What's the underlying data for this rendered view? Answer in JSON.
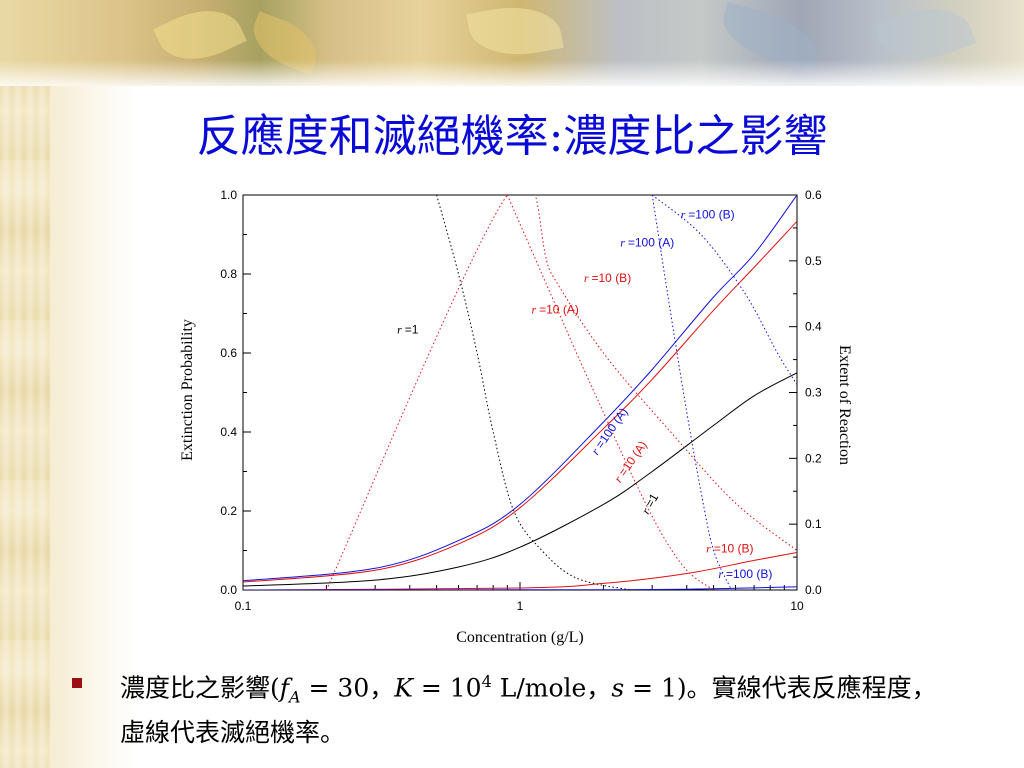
{
  "title": "反應度和滅絕機率:濃度比之影響",
  "bullet": {
    "prefix": "濃度比之影響(",
    "f_symbol": "f",
    "f_sub": "A",
    "f_eq": " = 30，",
    "K_symbol": "K",
    "K_eq": " = 10",
    "K_exp": "4",
    "K_unit": " L/mole，",
    "s_symbol": "s",
    "s_eq": " = 1)。實線代表反應程度，虛線代表滅絕機率。"
  },
  "chart_data": {
    "type": "line",
    "xscale": "log",
    "xlim": [
      0.1,
      10
    ],
    "ylim_left": [
      0,
      1.0
    ],
    "ylim_right": [
      0,
      0.6
    ],
    "xlabel": "Concentration (g/L)",
    "ylabel_left": "Extinction Probability",
    "ylabel_right": "Extent of Reaction",
    "x_ticks": [
      "0.1",
      "1",
      "10"
    ],
    "y_ticks_left": [
      "0.0",
      "0.2",
      "0.4",
      "0.6",
      "0.8",
      "1.0"
    ],
    "y_ticks_right": [
      "0.0",
      "0.1",
      "0.2",
      "0.3",
      "0.4",
      "0.5",
      "0.6"
    ],
    "colors": {
      "black": "#000000",
      "red": "#e01010",
      "blue": "#1010e0"
    },
    "series": [
      {
        "name": "r =1",
        "style": "solid",
        "axis": "right",
        "color": "#000000",
        "points": [
          [
            0.1,
            0.006
          ],
          [
            0.3,
            0.015
          ],
          [
            0.6,
            0.035
          ],
          [
            1,
            0.065
          ],
          [
            2,
            0.13
          ],
          [
            3,
            0.18
          ],
          [
            5,
            0.25
          ],
          [
            7,
            0.295
          ],
          [
            10,
            0.33
          ]
        ]
      },
      {
        "name": "r =10 (A)",
        "style": "solid",
        "axis": "right",
        "color": "#e01010",
        "points": [
          [
            0.1,
            0.012
          ],
          [
            0.3,
            0.03
          ],
          [
            0.6,
            0.07
          ],
          [
            1,
            0.125
          ],
          [
            2,
            0.245
          ],
          [
            3,
            0.32
          ],
          [
            5,
            0.425
          ],
          [
            7,
            0.49
          ],
          [
            10,
            0.56
          ]
        ]
      },
      {
        "name": "r =100 (A)",
        "style": "solid",
        "axis": "right",
        "color": "#1010e0",
        "points": [
          [
            0.1,
            0.014
          ],
          [
            0.3,
            0.033
          ],
          [
            0.6,
            0.075
          ],
          [
            1,
            0.13
          ],
          [
            2,
            0.255
          ],
          [
            3,
            0.335
          ],
          [
            5,
            0.445
          ],
          [
            7,
            0.51
          ],
          [
            10,
            0.6
          ]
        ]
      },
      {
        "name": "r =10 (B)",
        "style": "solid",
        "axis": "right",
        "color": "#e01010",
        "points": [
          [
            0.1,
            0.0
          ],
          [
            1,
            0.003
          ],
          [
            2,
            0.01
          ],
          [
            4,
            0.025
          ],
          [
            7,
            0.045
          ],
          [
            10,
            0.057
          ]
        ]
      },
      {
        "name": "r =100 (B)",
        "style": "solid",
        "axis": "right",
        "color": "#1010e0",
        "points": [
          [
            0.1,
            0.0
          ],
          [
            2,
            0.0005
          ],
          [
            5,
            0.002
          ],
          [
            10,
            0.005
          ]
        ]
      },
      {
        "name": "r =1",
        "style": "dotted",
        "axis": "left",
        "color": "#000000",
        "points": [
          [
            0.5,
            1.0
          ],
          [
            0.6,
            0.8
          ],
          [
            0.7,
            0.6
          ],
          [
            0.8,
            0.4
          ],
          [
            0.95,
            0.2
          ],
          [
            1.2,
            0.1
          ],
          [
            1.6,
            0.03
          ],
          [
            2.5,
            0.0
          ]
        ]
      },
      {
        "name": "r =10 (A)",
        "style": "dotted",
        "axis": "left",
        "color": "#e01010",
        "points": [
          [
            0.9,
            1.0
          ],
          [
            1.2,
            0.8
          ],
          [
            1.6,
            0.6
          ],
          [
            2.0,
            0.45
          ],
          [
            2.5,
            0.3
          ],
          [
            3.2,
            0.15
          ],
          [
            4,
            0.05
          ],
          [
            5,
            0.0
          ]
        ]
      },
      {
        "name": "r =100 (A)",
        "style": "dotted",
        "axis": "left",
        "color": "#1010e0",
        "points": [
          [
            3.0,
            1.0
          ],
          [
            3.5,
            0.7
          ],
          [
            4.0,
            0.45
          ],
          [
            4.5,
            0.25
          ],
          [
            5.0,
            0.1
          ],
          [
            5.8,
            0.0
          ]
        ]
      },
      {
        "name": "r =10 (B)",
        "style": "dotted",
        "axis": "left",
        "color": "#e01010",
        "points": [
          [
            0.2,
            0.0
          ],
          [
            0.9,
            1.0
          ],
          [
            1.3,
            0.8
          ],
          [
            2,
            0.6
          ],
          [
            3.5,
            0.4
          ],
          [
            6,
            0.22
          ],
          [
            10,
            0.1
          ]
        ]
      },
      {
        "name": "r =100 (B)",
        "style": "dotted",
        "axis": "left",
        "color": "#1010e0",
        "points": [
          [
            3,
            1.0
          ],
          [
            4.5,
            0.9
          ],
          [
            6.5,
            0.75
          ],
          [
            8.5,
            0.6
          ],
          [
            10,
            0.52
          ]
        ]
      }
    ],
    "annotations": [
      {
        "text": "r =100 (B)",
        "color": "#1010e0",
        "x": 3.8,
        "y": 0.94,
        "axis": "left",
        "rotate": 0
      },
      {
        "text": "r =100 (A)",
        "color": "#1010e0",
        "x": 2.3,
        "y": 0.87,
        "axis": "left",
        "rotate": 0
      },
      {
        "text": "r =10 (B)",
        "color": "#e01010",
        "x": 1.7,
        "y": 0.78,
        "axis": "left",
        "rotate": 0
      },
      {
        "text": "r =10 (A)",
        "color": "#e01010",
        "x": 1.1,
        "y": 0.7,
        "axis": "left",
        "rotate": 0
      },
      {
        "text": "r =1",
        "color": "#000000",
        "x": 0.36,
        "y": 0.65,
        "axis": "left",
        "rotate": 0
      },
      {
        "text": "r =100 (A)",
        "color": "#1010e0",
        "x": 1.9,
        "y": 0.34,
        "axis": "left",
        "rotate": -55
      },
      {
        "text": "r =10 (A)",
        "color": "#e01010",
        "x": 2.3,
        "y": 0.27,
        "axis": "left",
        "rotate": -55
      },
      {
        "text": "r =1",
        "color": "#000000",
        "x": 2.9,
        "y": 0.19,
        "axis": "left",
        "rotate": -60
      },
      {
        "text": "r =10 (B)",
        "color": "#e01010",
        "x": 4.7,
        "y": 0.095,
        "axis": "left",
        "rotate": 0
      },
      {
        "text": "r =100 (B)",
        "color": "#1010e0",
        "x": 5.2,
        "y": 0.03,
        "axis": "left",
        "rotate": 0
      }
    ]
  }
}
